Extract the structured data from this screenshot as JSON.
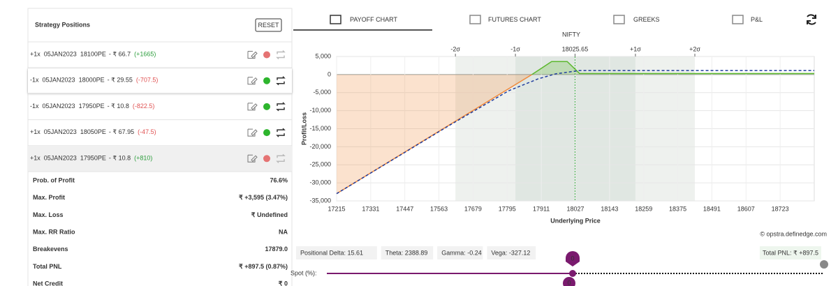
{
  "panel": {
    "title": "Strategy Positions",
    "reset": "RESET",
    "positions": [
      {
        "qty": "+1x",
        "expiry": "05JAN2023",
        "strike": "18100PE",
        "price": "- ₹ 66.7",
        "pnl": "(+1665)",
        "pnl_color": "#2e9e3e",
        "dot_color": "#e57373"
      },
      {
        "qty": "-1x",
        "expiry": "05JAN2023",
        "strike": "18000PE",
        "price": "- ₹ 29.55",
        "pnl": "(-707.5)",
        "pnl_color": "#e05252",
        "dot_color": "#2db52d"
      },
      {
        "qty": "-1x",
        "expiry": "05JAN2023",
        "strike": "17950PE",
        "price": "- ₹ 10.8",
        "pnl": "(-822.5)",
        "pnl_color": "#e05252",
        "dot_color": "#2db52d"
      },
      {
        "qty": "+1x",
        "expiry": "05JAN2023",
        "strike": "18050PE",
        "price": "- ₹ 67.95",
        "pnl": "(-47.5)",
        "pnl_color": "#e05252",
        "dot_color": "#2db52d"
      },
      {
        "qty": "+1x",
        "expiry": "05JAN2023",
        "strike": "17950PE",
        "price": "- ₹ 10.8",
        "pnl": "(+810)",
        "pnl_color": "#2e9e3e",
        "dot_color": "#e57373"
      }
    ],
    "stats": [
      {
        "label": "Prob. of Profit",
        "value": "76.6%"
      },
      {
        "label": "Max. Profit",
        "value": "₹ +3,595 (3.47%)"
      },
      {
        "label": "Max. Loss",
        "value": "₹ Undefined"
      },
      {
        "label": "Max. RR Ratio",
        "value": "NA"
      },
      {
        "label": "Breakevens",
        "value": "17879.0"
      },
      {
        "label": "Total PNL",
        "value": "₹ +897.5 (0.87%)",
        "color": "#2e9e3e"
      },
      {
        "label": "Net Credit",
        "value": "₹ 0"
      }
    ]
  },
  "tabs": [
    "PAYOFF CHART",
    "FUTURES CHART",
    "GREEKS",
    "P&L"
  ],
  "chart_data": {
    "type": "line",
    "title": "NIFTY",
    "x_label": "Underlying Price",
    "y_label": "Profit/Loss",
    "xlim": [
      17215,
      18839
    ],
    "ylim": [
      -35000,
      5000
    ],
    "xticks": [
      17215,
      17331,
      17447,
      17563,
      17679,
      17795,
      17911,
      18027,
      18143,
      18259,
      18375,
      18491,
      18607,
      18723
    ],
    "yticks": [
      {
        "value": 5000,
        "label": "5,000"
      },
      0,
      {
        "value": -5000,
        "label": "-5,000"
      },
      {
        "value": -10000,
        "label": "-10,000"
      },
      {
        "value": -15000,
        "label": "-15,000"
      },
      {
        "value": -20000,
        "label": "-20,000"
      },
      {
        "value": -25000,
        "label": "-25,000"
      },
      {
        "value": -30000,
        "label": "-30,000"
      },
      {
        "value": -35000,
        "label": "-35,000"
      }
    ],
    "top_ticks": [
      {
        "value": 17619,
        "label": "-2σ"
      },
      {
        "value": 17823,
        "label": "-1σ"
      },
      18025.65,
      {
        "value": 18231,
        "label": "+1σ"
      },
      {
        "value": 18433,
        "label": "+2σ"
      }
    ],
    "grid": true,
    "series": [
      {
        "x": [
          17215,
          17879,
          17946,
          17999,
          18041,
          18839
        ],
        "values": [
          -33000,
          0,
          3595,
          3595,
          300,
          300
        ],
        "color": "#f08a3c",
        "profit_color": "#5cb82e"
      },
      {
        "x": [
          17215,
          17600,
          17800,
          17900,
          17960,
          18040,
          18839
        ],
        "values": [
          -33000,
          -14000,
          -4500,
          -1200,
          200,
          1100,
          1100
        ],
        "color": "#1f3c9e",
        "dashed": true
      }
    ],
    "credit": "© opstra.definedge.com"
  },
  "metrics": [
    "Positional Delta: 15.61",
    "Theta: 2388.89",
    "Gamma: -0.24",
    "Vega: -327.12"
  ],
  "total_pnl": "Total PNL: ₹ +897.5",
  "slider": {
    "label": "Spot (%):",
    "top": "0",
    "bottom": "0"
  }
}
